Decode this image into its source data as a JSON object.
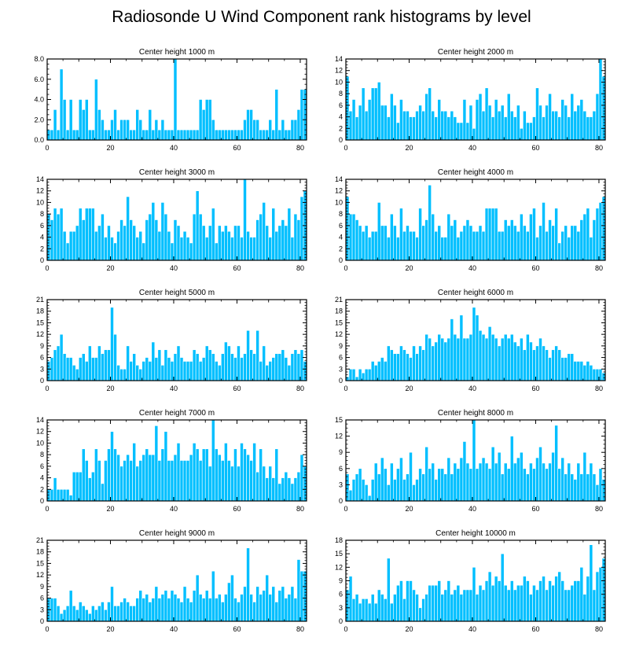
{
  "title": "Radiosonde U Wind Component rank histograms by level",
  "colors": {
    "bar": "#00BFFF",
    "bar_edge": "#ffffff",
    "axis": "#000000"
  },
  "chart_data": [
    {
      "type": "bar",
      "title": "Center height 1000 m",
      "xlim": [
        0,
        82
      ],
      "ylim": [
        0,
        8
      ],
      "xticks": [
        "0",
        "20",
        "40",
        "60",
        "80"
      ],
      "yticks": [
        "0.0",
        "2.0",
        "4.0",
        "6.0",
        "8.0"
      ],
      "values": [
        1,
        1,
        3,
        1,
        7,
        4,
        1,
        4,
        1,
        1,
        4,
        3,
        4,
        1,
        1,
        6,
        3,
        2,
        1,
        1,
        2,
        3,
        1,
        2,
        2,
        2,
        1,
        1,
        3,
        2,
        1,
        1,
        3,
        1,
        2,
        1,
        2,
        1,
        1,
        1,
        8,
        1,
        1,
        1,
        1,
        1,
        1,
        1,
        4,
        3,
        4,
        4,
        2,
        1,
        1,
        1,
        1,
        1,
        1,
        1,
        1,
        1,
        2,
        3,
        3,
        2,
        2,
        1,
        1,
        1,
        2,
        1,
        5,
        1,
        2,
        1,
        1,
        2,
        2,
        3,
        5,
        5
      ]
    },
    {
      "type": "bar",
      "title": "Center height 2000 m",
      "xlim": [
        0,
        82
      ],
      "ylim": [
        0,
        14
      ],
      "xticks": [
        "0",
        "20",
        "40",
        "60",
        "80"
      ],
      "yticks": [
        "0",
        "2",
        "4",
        "6",
        "8",
        "10",
        "12",
        "14"
      ],
      "values": [
        11,
        5,
        7,
        4,
        6,
        9,
        5,
        7,
        9,
        9,
        10,
        6,
        6,
        4,
        8,
        6,
        3,
        7,
        5,
        5,
        4,
        4,
        5,
        6,
        5,
        8,
        9,
        5,
        4,
        7,
        5,
        5,
        4,
        5,
        4,
        3,
        3,
        7,
        3,
        6,
        2,
        7,
        8,
        5,
        9,
        6,
        4,
        7,
        5,
        6,
        4,
        8,
        5,
        4,
        6,
        2,
        5,
        3,
        3,
        4,
        9,
        6,
        4,
        6,
        8,
        5,
        5,
        4,
        7,
        6,
        4,
        8,
        5,
        6,
        7,
        5,
        4,
        4,
        5,
        8,
        14,
        11
      ]
    },
    {
      "type": "bar",
      "title": "Center height 3000 m",
      "xlim": [
        0,
        82
      ],
      "ylim": [
        0,
        14
      ],
      "xticks": [
        "0",
        "20",
        "40",
        "60",
        "80"
      ],
      "yticks": [
        "0",
        "2",
        "4",
        "6",
        "8",
        "10",
        "12",
        "14"
      ],
      "values": [
        8,
        7,
        9,
        8,
        9,
        5,
        3,
        5,
        5,
        6,
        9,
        7,
        9,
        9,
        9,
        5,
        6,
        8,
        4,
        6,
        4,
        3,
        5,
        7,
        6,
        11,
        7,
        6,
        4,
        5,
        3,
        7,
        8,
        10,
        7,
        5,
        10,
        8,
        5,
        3,
        7,
        6,
        4,
        5,
        4,
        3,
        8,
        12,
        8,
        6,
        4,
        6,
        9,
        3,
        6,
        5,
        6,
        5,
        4,
        6,
        6,
        4,
        14,
        5,
        4,
        4,
        7,
        8,
        10,
        6,
        4,
        9,
        5,
        6,
        7,
        6,
        9,
        4,
        8,
        7,
        11,
        12
      ]
    },
    {
      "type": "bar",
      "title": "Center height 4000 m",
      "xlim": [
        0,
        82
      ],
      "ylim": [
        0,
        14
      ],
      "xticks": [
        "0",
        "20",
        "40",
        "60",
        "80"
      ],
      "yticks": [
        "0",
        "2",
        "4",
        "6",
        "8",
        "10",
        "12",
        "14"
      ],
      "values": [
        11,
        8,
        8,
        7,
        6,
        5,
        6,
        4,
        5,
        5,
        10,
        6,
        6,
        4,
        8,
        6,
        4,
        9,
        5,
        6,
        5,
        5,
        4,
        9,
        6,
        7,
        13,
        8,
        5,
        6,
        4,
        4,
        8,
        6,
        7,
        4,
        5,
        6,
        7,
        6,
        5,
        5,
        6,
        5,
        9,
        9,
        9,
        9,
        5,
        5,
        7,
        6,
        7,
        6,
        5,
        8,
        6,
        5,
        8,
        9,
        4,
        6,
        10,
        5,
        7,
        6,
        9,
        3,
        5,
        6,
        4,
        6,
        6,
        5,
        7,
        8,
        9,
        4,
        7,
        9,
        10,
        11
      ]
    },
    {
      "type": "bar",
      "title": "Center height 5000 m",
      "xlim": [
        0,
        82
      ],
      "ylim": [
        0,
        21
      ],
      "xticks": [
        "0",
        "20",
        "40",
        "60",
        "80"
      ],
      "yticks": [
        "0",
        "3",
        "6",
        "9",
        "12",
        "15",
        "18",
        "21"
      ],
      "values": [
        5,
        6,
        8,
        9,
        12,
        7,
        6,
        6,
        4,
        3,
        6,
        7,
        5,
        9,
        6,
        6,
        9,
        7,
        8,
        8,
        19,
        12,
        4,
        3,
        3,
        9,
        5,
        7,
        4,
        3,
        5,
        6,
        5,
        10,
        6,
        8,
        4,
        8,
        6,
        5,
        7,
        9,
        6,
        5,
        5,
        5,
        8,
        7,
        5,
        6,
        9,
        8,
        7,
        5,
        4,
        7,
        10,
        9,
        7,
        6,
        9,
        6,
        7,
        13,
        8,
        7,
        13,
        5,
        9,
        4,
        5,
        6,
        7,
        7,
        8,
        6,
        4,
        7,
        8,
        7,
        8,
        5
      ]
    },
    {
      "type": "bar",
      "title": "Center height 6000 m",
      "xlim": [
        0,
        82
      ],
      "ylim": [
        0,
        21
      ],
      "xticks": [
        "0",
        "20",
        "40",
        "60",
        "80"
      ],
      "yticks": [
        "0",
        "3",
        "6",
        "9",
        "12",
        "15",
        "18",
        "21"
      ],
      "values": [
        1,
        3,
        3,
        1,
        3,
        2,
        3,
        3,
        5,
        4,
        5,
        6,
        5,
        9,
        8,
        7,
        7,
        9,
        8,
        7,
        6,
        9,
        7,
        9,
        8,
        12,
        11,
        9,
        10,
        12,
        11,
        10,
        11,
        16,
        12,
        11,
        17,
        11,
        11,
        12,
        19,
        17,
        13,
        12,
        11,
        14,
        12,
        11,
        9,
        11,
        12,
        11,
        12,
        10,
        9,
        11,
        8,
        12,
        10,
        8,
        9,
        11,
        9,
        8,
        6,
        8,
        9,
        8,
        6,
        6,
        7,
        7,
        5,
        5,
        5,
        4,
        5,
        4,
        3,
        3,
        3,
        2
      ]
    },
    {
      "type": "bar",
      "title": "Center height 7000 m",
      "xlim": [
        0,
        82
      ],
      "ylim": [
        0,
        14
      ],
      "xticks": [
        "0",
        "20",
        "40",
        "60",
        "80"
      ],
      "yticks": [
        "0",
        "2",
        "4",
        "6",
        "8",
        "10",
        "12",
        "14"
      ],
      "values": [
        2,
        2,
        4,
        2,
        2,
        2,
        2,
        1,
        5,
        5,
        5,
        9,
        7,
        4,
        5,
        9,
        7,
        3,
        7,
        9,
        12,
        9,
        8,
        6,
        7,
        8,
        7,
        10,
        6,
        7,
        8,
        9,
        8,
        8,
        13,
        7,
        9,
        12,
        7,
        7,
        8,
        10,
        7,
        7,
        7,
        8,
        10,
        9,
        7,
        9,
        9,
        6,
        14,
        9,
        8,
        7,
        10,
        7,
        6,
        9,
        6,
        10,
        9,
        8,
        7,
        10,
        5,
        9,
        6,
        4,
        6,
        4,
        9,
        3,
        4,
        5,
        4,
        3,
        4,
        5,
        8,
        6
      ]
    },
    {
      "type": "bar",
      "title": "Center height 8000 m",
      "xlim": [
        0,
        82
      ],
      "ylim": [
        0,
        15
      ],
      "xticks": [
        "0",
        "20",
        "40",
        "60",
        "80"
      ],
      "yticks": [
        "0",
        "3",
        "6",
        "9",
        "12",
        "15"
      ],
      "values": [
        5,
        2,
        4,
        5,
        6,
        4,
        3,
        1,
        4,
        7,
        5,
        8,
        6,
        3,
        7,
        4,
        6,
        8,
        4,
        5,
        9,
        3,
        4,
        6,
        5,
        10,
        6,
        7,
        4,
        6,
        6,
        5,
        8,
        5,
        7,
        6,
        8,
        11,
        7,
        6,
        15,
        6,
        7,
        8,
        7,
        6,
        10,
        7,
        9,
        5,
        7,
        6,
        12,
        7,
        8,
        9,
        6,
        5,
        7,
        6,
        8,
        10,
        7,
        6,
        7,
        9,
        14,
        6,
        8,
        5,
        7,
        5,
        4,
        7,
        5,
        9,
        5,
        7,
        5,
        3,
        6,
        4
      ]
    },
    {
      "type": "bar",
      "title": "Center height 9000 m",
      "xlim": [
        0,
        82
      ],
      "ylim": [
        0,
        21
      ],
      "xticks": [
        "0",
        "20",
        "40",
        "60",
        "80"
      ],
      "yticks": [
        "0",
        "3",
        "6",
        "9",
        "12",
        "15",
        "18",
        "21"
      ],
      "values": [
        6,
        6,
        6,
        4,
        2,
        3,
        4,
        8,
        4,
        3,
        5,
        4,
        3,
        2,
        4,
        3,
        4,
        5,
        3,
        5,
        9,
        4,
        4,
        5,
        6,
        5,
        4,
        4,
        6,
        8,
        6,
        7,
        5,
        6,
        9,
        6,
        7,
        8,
        6,
        8,
        7,
        6,
        5,
        9,
        6,
        5,
        8,
        12,
        7,
        6,
        8,
        6,
        13,
        6,
        7,
        5,
        7,
        10,
        12,
        6,
        5,
        7,
        9,
        19,
        7,
        5,
        9,
        7,
        8,
        12,
        7,
        9,
        5,
        8,
        9,
        6,
        7,
        9,
        6,
        16,
        13,
        13
      ]
    },
    {
      "type": "bar",
      "title": "Center height 10000 m",
      "xlim": [
        0,
        82
      ],
      "ylim": [
        0,
        18
      ],
      "xticks": [
        "0",
        "20",
        "40",
        "60",
        "80"
      ],
      "yticks": [
        "0",
        "3",
        "6",
        "9",
        "12",
        "15",
        "18"
      ],
      "values": [
        7,
        10,
        5,
        6,
        4,
        5,
        5,
        4,
        6,
        4,
        7,
        6,
        5,
        14,
        4,
        6,
        8,
        9,
        5,
        9,
        9,
        7,
        6,
        3,
        5,
        6,
        8,
        8,
        8,
        9,
        6,
        7,
        9,
        6,
        7,
        8,
        6,
        7,
        7,
        7,
        12,
        6,
        8,
        7,
        9,
        11,
        8,
        10,
        9,
        15,
        8,
        7,
        9,
        7,
        8,
        8,
        10,
        9,
        6,
        8,
        7,
        9,
        10,
        7,
        9,
        8,
        10,
        11,
        9,
        7,
        7,
        8,
        9,
        9,
        12,
        6,
        10,
        17,
        7,
        11,
        12,
        14
      ]
    }
  ]
}
